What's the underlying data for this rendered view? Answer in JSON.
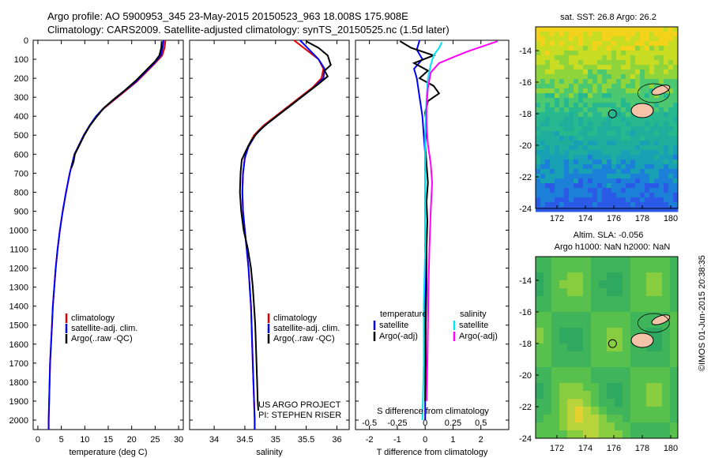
{
  "header": {
    "line1": "Argo profile: AO 5900953_345 23-May-2015 20150523_963 18.008S 175.908E",
    "line2": "Climatology: CARS2009. Satellite-adjusted climatology: synTS_20150525.nc (1.5d later)"
  },
  "side_stamp": "©IMOS 01-Jun-2015 20:38:35",
  "project_note": {
    "line1": "US ARGO PROJECT",
    "line2": "PI: STEPHEN RISER"
  },
  "colors": {
    "climatology": "#e00000",
    "satellite": "#0000ff",
    "argo": "#000000",
    "salinity_sat": "#00e5ee",
    "salinity_argo": "#ff00ff"
  },
  "chart_data": [
    {
      "type": "line",
      "xlabel": "temperature (deg C)",
      "ylabel": "",
      "xlim": [
        -1,
        31
      ],
      "ylim": [
        2050,
        0
      ],
      "xticks": [
        0,
        5,
        10,
        15,
        20,
        25,
        30
      ],
      "yticks": [
        0,
        100,
        200,
        300,
        400,
        500,
        600,
        700,
        800,
        900,
        1000,
        1100,
        1200,
        1300,
        1400,
        1500,
        1600,
        1700,
        1800,
        1900,
        2000
      ],
      "legend": [
        "climatology",
        "satellite-adj. clim.",
        "Argo(..raw -QC)"
      ],
      "series": [
        {
          "name": "climatology",
          "color": "#e00000",
          "points": [
            [
              27.2,
              0
            ],
            [
              27.0,
              40
            ],
            [
              26.5,
              80
            ],
            [
              25.0,
              120
            ],
            [
              23.0,
              170
            ],
            [
              21.0,
              220
            ],
            [
              18.5,
              270
            ],
            [
              16.0,
              320
            ],
            [
              14.0,
              360
            ],
            [
              12.5,
              400
            ],
            [
              11.0,
              450
            ],
            [
              9.8,
              500
            ],
            [
              8.8,
              550
            ],
            [
              7.8,
              600
            ],
            [
              6.8,
              700
            ],
            [
              6.0,
              800
            ],
            [
              5.3,
              900
            ],
            [
              4.7,
              1000
            ],
            [
              4.2,
              1100
            ],
            [
              3.8,
              1200
            ],
            [
              3.5,
              1300
            ],
            [
              3.2,
              1400
            ],
            [
              3.0,
              1500
            ],
            [
              2.8,
              1600
            ],
            [
              2.6,
              1700
            ],
            [
              2.5,
              1800
            ],
            [
              2.4,
              1900
            ],
            [
              2.3,
              2000
            ],
            [
              2.3,
              2050
            ]
          ]
        },
        {
          "name": "satellite-adj. clim.",
          "color": "#0000ff",
          "points": [
            [
              26.8,
              0
            ],
            [
              26.6,
              40
            ],
            [
              26.2,
              80
            ],
            [
              24.8,
              120
            ],
            [
              22.8,
              170
            ],
            [
              20.8,
              220
            ],
            [
              18.3,
              270
            ],
            [
              15.8,
              320
            ],
            [
              13.9,
              360
            ],
            [
              12.4,
              400
            ],
            [
              11.0,
              450
            ],
            [
              9.8,
              500
            ],
            [
              8.8,
              550
            ],
            [
              7.8,
              600
            ],
            [
              6.8,
              700
            ],
            [
              6.0,
              800
            ],
            [
              5.3,
              900
            ],
            [
              4.7,
              1000
            ],
            [
              4.2,
              1100
            ],
            [
              3.8,
              1200
            ],
            [
              3.5,
              1300
            ],
            [
              3.2,
              1400
            ],
            [
              3.0,
              1500
            ],
            [
              2.8,
              1600
            ],
            [
              2.6,
              1700
            ],
            [
              2.5,
              1800
            ],
            [
              2.4,
              1900
            ],
            [
              2.3,
              2000
            ],
            [
              2.3,
              2050
            ]
          ]
        },
        {
          "name": "Argo(..raw -QC)",
          "color": "#000000",
          "points": [
            [
              26.4,
              5
            ],
            [
              26.3,
              40
            ],
            [
              25.9,
              80
            ],
            [
              25.0,
              110
            ],
            [
              23.0,
              160
            ],
            [
              21.0,
              210
            ],
            [
              18.7,
              260
            ],
            [
              16.2,
              310
            ],
            [
              14.1,
              355
            ],
            [
              12.6,
              400
            ],
            [
              11.1,
              450
            ],
            [
              9.9,
              500
            ],
            [
              8.9,
              550
            ],
            [
              7.9,
              600
            ],
            [
              7.6,
              640
            ],
            [
              7.2,
              670
            ]
          ]
        }
      ]
    },
    {
      "type": "line",
      "xlabel": "salinity",
      "xlim": [
        33.6,
        36.2
      ],
      "ylim": [
        2050,
        0
      ],
      "xticks": [
        34,
        34.5,
        35,
        35.5,
        36
      ],
      "legend": [
        "climatology",
        "satellite-adj. clim.",
        "Argo(..raw -QC)"
      ],
      "series": [
        {
          "name": "climatology",
          "color": "#e00000",
          "points": [
            [
              35.3,
              0
            ],
            [
              35.5,
              50
            ],
            [
              35.7,
              100
            ],
            [
              35.78,
              150
            ],
            [
              35.75,
              200
            ],
            [
              35.6,
              250
            ],
            [
              35.4,
              300
            ],
            [
              35.2,
              350
            ],
            [
              35.0,
              400
            ],
            [
              34.8,
              450
            ],
            [
              34.65,
              500
            ],
            [
              34.55,
              560
            ],
            [
              34.5,
              620
            ],
            [
              34.47,
              700
            ],
            [
              34.46,
              800
            ],
            [
              34.47,
              900
            ],
            [
              34.5,
              1000
            ],
            [
              34.53,
              1100
            ],
            [
              34.56,
              1200
            ],
            [
              34.58,
              1300
            ],
            [
              34.6,
              1400
            ],
            [
              34.61,
              1500
            ],
            [
              34.62,
              1600
            ],
            [
              34.63,
              1700
            ],
            [
              34.64,
              1800
            ],
            [
              34.65,
              1900
            ],
            [
              34.66,
              2000
            ],
            [
              34.66,
              2050
            ]
          ]
        },
        {
          "name": "satellite-adj. clim.",
          "color": "#0000ff",
          "points": [
            [
              35.4,
              0
            ],
            [
              35.55,
              50
            ],
            [
              35.7,
              100
            ],
            [
              35.8,
              150
            ],
            [
              35.78,
              200
            ],
            [
              35.62,
              250
            ],
            [
              35.42,
              300
            ],
            [
              35.22,
              350
            ],
            [
              35.02,
              400
            ],
            [
              34.82,
              450
            ],
            [
              34.67,
              500
            ],
            [
              34.56,
              560
            ],
            [
              34.5,
              620
            ],
            [
              34.47,
              700
            ],
            [
              34.46,
              800
            ],
            [
              34.47,
              900
            ],
            [
              34.5,
              1000
            ],
            [
              34.53,
              1100
            ],
            [
              34.56,
              1200
            ],
            [
              34.58,
              1300
            ],
            [
              34.6,
              1400
            ],
            [
              34.61,
              1500
            ],
            [
              34.62,
              1600
            ],
            [
              34.63,
              1700
            ],
            [
              34.64,
              1800
            ],
            [
              34.65,
              1900
            ],
            [
              34.66,
              2000
            ],
            [
              34.66,
              2050
            ]
          ]
        },
        {
          "name": "Argo(..raw -QC)",
          "color": "#000000",
          "points": [
            [
              35.5,
              5
            ],
            [
              35.7,
              40
            ],
            [
              35.85,
              80
            ],
            [
              35.9,
              130
            ],
            [
              35.8,
              160
            ],
            [
              35.85,
              190
            ],
            [
              35.7,
              230
            ],
            [
              35.5,
              280
            ],
            [
              35.3,
              330
            ],
            [
              35.1,
              380
            ],
            [
              34.9,
              430
            ],
            [
              34.72,
              480
            ],
            [
              34.6,
              530
            ],
            [
              34.52,
              580
            ],
            [
              34.45,
              630
            ],
            [
              34.43,
              700
            ],
            [
              34.42,
              800
            ],
            [
              34.44,
              900
            ],
            [
              34.48,
              1000
            ],
            [
              34.55,
              1100
            ],
            [
              34.6,
              1200
            ],
            [
              34.63,
              1300
            ],
            [
              34.65,
              1400
            ],
            [
              34.67,
              1500
            ],
            [
              34.68,
              1600
            ],
            [
              34.69,
              1700
            ],
            [
              34.7,
              1800
            ],
            [
              34.71,
              1900
            ],
            [
              34.72,
              1950
            ]
          ]
        }
      ]
    },
    {
      "type": "line",
      "xlabel": "T difference from climatology",
      "x2label": "S difference from climatology",
      "xlim": [
        -2.5,
        3.0
      ],
      "ylim": [
        2050,
        0
      ],
      "xticks": [
        -2,
        -1,
        0,
        1,
        2
      ],
      "x2ticks": [
        "-0.5",
        "-0.25",
        "0",
        "0.25",
        "0.5"
      ],
      "legend_titles": [
        "temperature",
        "salinity"
      ],
      "legend": [
        "satellite",
        "Argo(-adj)",
        "satellite",
        "Argo(-adj)"
      ],
      "series": [
        {
          "name": "satellite",
          "color": "#0000ff",
          "points": [
            [
              -0.2,
              0
            ],
            [
              -0.3,
              50
            ],
            [
              -0.1,
              100
            ],
            [
              -0.4,
              150
            ],
            [
              -0.3,
              200
            ],
            [
              -0.2,
              300
            ],
            [
              -0.1,
              400
            ],
            [
              -0.05,
              500
            ],
            [
              0,
              600
            ],
            [
              0,
              800
            ],
            [
              0,
              1000
            ],
            [
              0,
              1200
            ],
            [
              0,
              1400
            ],
            [
              0,
              1600
            ],
            [
              0,
              1800
            ],
            [
              0,
              2000
            ]
          ]
        },
        {
          "name": "Argo(-adj)",
          "color": "#000000",
          "points": [
            [
              -0.9,
              5
            ],
            [
              -0.5,
              40
            ],
            [
              0.3,
              80
            ],
            [
              -0.4,
              120
            ],
            [
              0.1,
              160
            ],
            [
              -0.2,
              200
            ],
            [
              0.3,
              240
            ],
            [
              0.5,
              280
            ],
            [
              0.1,
              320
            ],
            [
              0.0,
              380
            ],
            [
              0.05,
              450
            ],
            [
              0.0,
              550
            ],
            [
              0.05,
              650
            ],
            [
              0.1,
              750
            ],
            [
              0.05,
              850
            ],
            [
              0.08,
              950
            ],
            [
              0.05,
              1100
            ],
            [
              0.05,
              1300
            ],
            [
              0.02,
              1500
            ],
            [
              0.02,
              1700
            ],
            [
              0.0,
              1900
            ]
          ]
        },
        {
          "name": "satellite",
          "color": "#00e5ee",
          "points": [
            [
              0.6,
              10
            ],
            [
              0.5,
              40
            ],
            [
              0.3,
              80
            ],
            [
              0.2,
              130
            ],
            [
              0.1,
              200
            ],
            [
              0.05,
              300
            ],
            [
              0.0,
              500
            ],
            [
              0.0,
              800
            ],
            [
              0.0,
              1100
            ],
            [
              -0.05,
              1400
            ],
            [
              -0.05,
              1700
            ],
            [
              -0.1,
              2000
            ]
          ]
        },
        {
          "name": "Argo(-adj)",
          "color": "#ff00ff",
          "points": [
            [
              2.6,
              5
            ],
            [
              1.5,
              60
            ],
            [
              1.0,
              90
            ],
            [
              0.5,
              120
            ],
            [
              0.2,
              170
            ],
            [
              0.1,
              250
            ],
            [
              0.05,
              350
            ],
            [
              0.05,
              450
            ],
            [
              0.1,
              550
            ],
            [
              0.2,
              650
            ],
            [
              0.25,
              750
            ],
            [
              0.2,
              900
            ],
            [
              0.15,
              1100
            ],
            [
              0.12,
              1300
            ],
            [
              0.1,
              1500
            ],
            [
              0.08,
              1700
            ],
            [
              0.05,
              1900
            ]
          ]
        }
      ]
    },
    {
      "type": "heatmap",
      "title": "sat. SST: 26.8  Argo: 26.2",
      "xticks": [
        172,
        174,
        176,
        178,
        180
      ],
      "yticks": [
        -14,
        -16,
        -18,
        -20,
        -22,
        -24
      ],
      "xlim": [
        170.5,
        180.5
      ],
      "ylim": [
        -24,
        -12.5
      ],
      "argo_position": [
        175.908,
        -18.008
      ]
    },
    {
      "type": "heatmap",
      "title_line1": "Altim. SLA: -0.056",
      "title_line2": "Argo h1000: NaN h2000: NaN",
      "xticks": [
        172,
        174,
        176,
        178,
        180
      ],
      "yticks": [
        -14,
        -16,
        -18,
        -20,
        -22,
        -24
      ],
      "xlim": [
        170.5,
        180.5
      ],
      "ylim": [
        -24,
        -12.5
      ],
      "argo_position": [
        175.908,
        -18.008
      ]
    }
  ]
}
